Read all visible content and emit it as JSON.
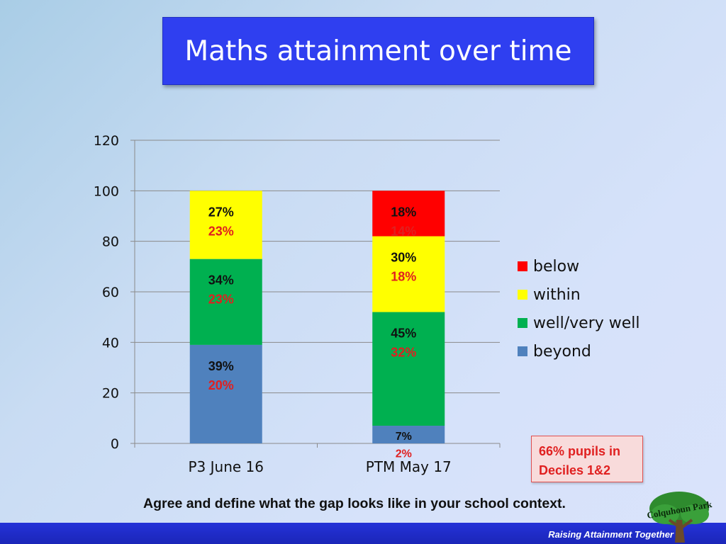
{
  "slide": {
    "title": "Maths attainment over time",
    "callout": "66% pupils in Deciles 1&2",
    "instruction": "Agree and define what the gap looks like in your school context.",
    "footer": "Raising Attainment Together",
    "logo_text": "Colquhoun Park",
    "colors": {
      "title_bg": "#2f3ff0",
      "footer_bg": "#1f2bc8",
      "callout_text": "#e02020"
    }
  },
  "chart_data": {
    "type": "bar",
    "stacked": true,
    "title": "",
    "xlabel": "",
    "ylabel": "",
    "ylim": [
      0,
      120
    ],
    "yticks": [
      0,
      20,
      40,
      60,
      80,
      100,
      120
    ],
    "grid": true,
    "legend_position": "right",
    "categories": [
      "P3 June 16",
      "PTM May 17"
    ],
    "series": [
      {
        "name": "beyond",
        "color": "#4f81bd",
        "values": [
          39,
          7
        ],
        "labels": [
          [
            "39%",
            "20%"
          ],
          [
            "7%",
            "2%"
          ]
        ]
      },
      {
        "name": "well/very well",
        "color": "#00b050",
        "values": [
          34,
          45
        ],
        "labels": [
          [
            "34%",
            "23%"
          ],
          [
            "45%",
            "32%"
          ]
        ]
      },
      {
        "name": "within",
        "color": "#ffff00",
        "values": [
          27,
          30
        ],
        "labels": [
          [
            "27%",
            "23%"
          ],
          [
            "30%",
            "18%"
          ]
        ]
      },
      {
        "name": "below",
        "color": "#ff0000",
        "values": [
          0,
          18
        ],
        "labels": [
          null,
          [
            "18%",
            "14%"
          ]
        ]
      }
    ],
    "label_colors": [
      "#111111",
      "#e02020"
    ]
  }
}
